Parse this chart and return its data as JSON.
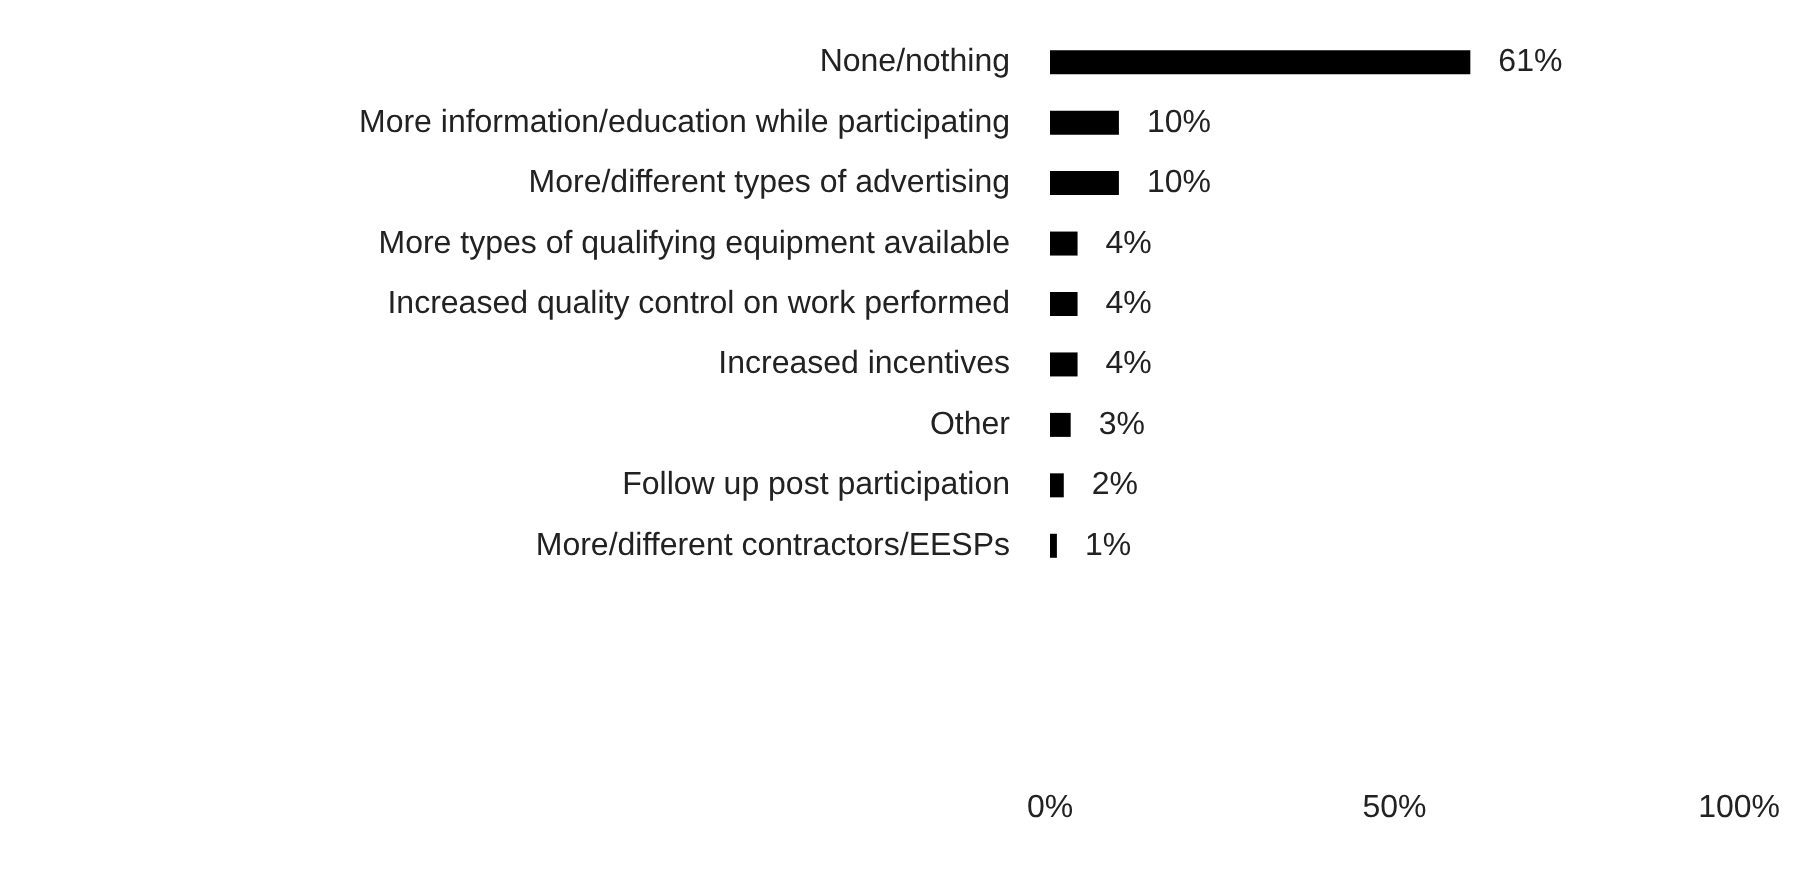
{
  "chart_data": {
    "type": "bar",
    "orientation": "horizontal",
    "categories": [
      "None/nothing",
      "More information/education while participating",
      "More/different types of advertising",
      "More types of qualifying equipment available",
      "Increased quality control on work performed",
      "Increased incentives",
      "Other",
      "Follow up post participation",
      "More/different contractors/EESPs"
    ],
    "values": [
      61,
      10,
      10,
      4,
      4,
      4,
      3,
      2,
      1
    ],
    "value_labels": [
      "61%",
      "10%",
      "10%",
      "4%",
      "4%",
      "4%",
      "3%",
      "2%",
      "1%"
    ],
    "color": "#000000",
    "xlim": [
      0,
      100
    ],
    "xticks": [
      {
        "value": 0,
        "label": "0%"
      },
      {
        "value": 50,
        "label": "50%"
      },
      {
        "value": 100,
        "label": "100%"
      }
    ],
    "grid": false
  }
}
